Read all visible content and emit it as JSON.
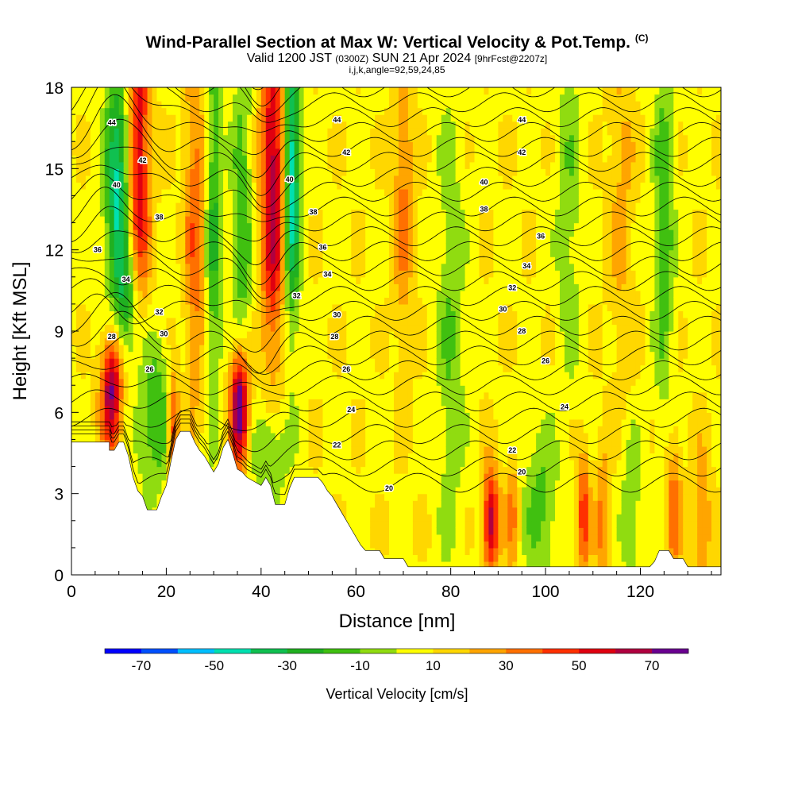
{
  "title": {
    "main": "Wind-Parallel Section at Max W: Vertical Velocity & Pot.Temp.",
    "copyright": "(C)",
    "valid_prefix": "Valid 1200 JST",
    "valid_utc": "(0300Z)",
    "valid_date": "SUN 21 Apr 2024",
    "forecast": "[9hrFcst@2207z]",
    "indices": "i,j,k,angle=92,59,24,85"
  },
  "chart_data": {
    "type": "heatmap",
    "xlabel": "Distance [nm]",
    "ylabel": "Height [Kft MSL]",
    "xlim": [
      0,
      137
    ],
    "ylim": [
      0,
      18
    ],
    "x_ticks": [
      "0",
      "20",
      "40",
      "60",
      "80",
      "100",
      "120"
    ],
    "y_ticks": [
      "0",
      "3",
      "6",
      "9",
      "12",
      "15",
      "18"
    ],
    "colorbar": {
      "label": "Vertical Velocity [cm/s]",
      "tick_labels": [
        "-70",
        "-50",
        "-30",
        "-10",
        "10",
        "30",
        "50",
        "70"
      ],
      "levels": [
        -80,
        -70,
        -60,
        -50,
        -40,
        -30,
        -20,
        -10,
        0,
        10,
        20,
        30,
        40,
        50,
        60,
        70,
        80
      ],
      "colors": [
        "#0000ff",
        "#0050ff",
        "#00bfff",
        "#00e0b0",
        "#10c050",
        "#20b020",
        "#40c010",
        "#90dc10",
        "#ffff00",
        "#ffd700",
        "#ffa500",
        "#ff7000",
        "#ff3000",
        "#e00010",
        "#b00040",
        "#6a0090"
      ]
    },
    "terrain": [
      [
        0,
        4.9
      ],
      [
        8,
        4.9
      ],
      [
        8,
        4.6
      ],
      [
        9,
        4.6
      ],
      [
        10,
        4.9
      ],
      [
        11,
        4.9
      ],
      [
        12,
        4.4
      ],
      [
        13,
        3.6
      ],
      [
        14,
        3.1
      ],
      [
        15,
        2.9
      ],
      [
        16,
        2.4
      ],
      [
        18,
        2.4
      ],
      [
        19,
        2.9
      ],
      [
        20,
        3.3
      ],
      [
        21,
        4.2
      ],
      [
        22,
        5.0
      ],
      [
        23,
        5.3
      ],
      [
        25,
        5.3
      ],
      [
        26,
        4.9
      ],
      [
        27,
        4.6
      ],
      [
        28,
        4.4
      ],
      [
        29,
        4.1
      ],
      [
        30,
        3.8
      ],
      [
        31,
        4.1
      ],
      [
        32,
        4.7
      ],
      [
        33,
        5.0
      ],
      [
        34,
        4.5
      ],
      [
        35,
        3.9
      ],
      [
        36,
        3.8
      ],
      [
        37,
        3.6
      ],
      [
        38,
        3.5
      ],
      [
        39,
        3.4
      ],
      [
        40,
        3.3
      ],
      [
        41,
        3.6
      ],
      [
        42,
        3.3
      ],
      [
        43,
        2.6
      ],
      [
        45,
        2.6
      ],
      [
        46,
        3.2
      ],
      [
        47,
        3.6
      ],
      [
        52,
        3.6
      ],
      [
        53,
        3.4
      ],
      [
        54,
        3.1
      ],
      [
        55,
        2.9
      ],
      [
        56,
        2.6
      ],
      [
        57,
        2.3
      ],
      [
        58,
        2.0
      ],
      [
        59,
        1.7
      ],
      [
        60,
        1.4
      ],
      [
        61,
        1.1
      ],
      [
        62,
        0.9
      ],
      [
        65,
        0.9
      ],
      [
        66,
        0.6
      ],
      [
        70,
        0.6
      ],
      [
        71,
        0.3
      ],
      [
        122,
        0.3
      ],
      [
        123,
        0.5
      ],
      [
        124,
        0.9
      ],
      [
        126,
        0.9
      ],
      [
        127,
        0.6
      ],
      [
        129,
        0.6
      ],
      [
        130,
        0.3
      ],
      [
        137,
        0.3
      ]
    ],
    "isentrope_labels": [
      {
        "text": "44",
        "x": 8.5,
        "y": 16.7
      },
      {
        "text": "44",
        "x": 56,
        "y": 16.8
      },
      {
        "text": "44",
        "x": 95,
        "y": 16.8
      },
      {
        "text": "42",
        "x": 15,
        "y": 15.3
      },
      {
        "text": "42",
        "x": 58,
        "y": 15.6
      },
      {
        "text": "42",
        "x": 95,
        "y": 15.6
      },
      {
        "text": "40",
        "x": 9.5,
        "y": 14.4
      },
      {
        "text": "40",
        "x": 46,
        "y": 14.6
      },
      {
        "text": "40",
        "x": 87,
        "y": 14.5
      },
      {
        "text": "38",
        "x": 18.5,
        "y": 13.2
      },
      {
        "text": "38",
        "x": 51,
        "y": 13.4
      },
      {
        "text": "38",
        "x": 87,
        "y": 13.5
      },
      {
        "text": "36",
        "x": 5.5,
        "y": 12.0
      },
      {
        "text": "36",
        "x": 53,
        "y": 12.1
      },
      {
        "text": "36",
        "x": 99,
        "y": 12.5
      },
      {
        "text": "34",
        "x": 11.5,
        "y": 10.9
      },
      {
        "text": "34",
        "x": 54,
        "y": 11.1
      },
      {
        "text": "34",
        "x": 96,
        "y": 11.4
      },
      {
        "text": "32",
        "x": 18.5,
        "y": 9.7
      },
      {
        "text": "32",
        "x": 47.5,
        "y": 10.3
      },
      {
        "text": "32",
        "x": 93,
        "y": 10.6
      },
      {
        "text": "30",
        "x": 19.5,
        "y": 8.9
      },
      {
        "text": "30",
        "x": 56,
        "y": 9.6
      },
      {
        "text": "30",
        "x": 91,
        "y": 9.8
      },
      {
        "text": "28",
        "x": 8.5,
        "y": 8.8
      },
      {
        "text": "28",
        "x": 55.5,
        "y": 8.8
      },
      {
        "text": "28",
        "x": 95,
        "y": 9.0
      },
      {
        "text": "26",
        "x": 16.5,
        "y": 7.6
      },
      {
        "text": "26",
        "x": 58,
        "y": 7.6
      },
      {
        "text": "26",
        "x": 100,
        "y": 7.9
      },
      {
        "text": "24",
        "x": 59,
        "y": 6.1
      },
      {
        "text": "24",
        "x": 104,
        "y": 6.2
      },
      {
        "text": "22",
        "x": 56,
        "y": 4.8
      },
      {
        "text": "22",
        "x": 93,
        "y": 4.6
      },
      {
        "text": "20",
        "x": 67,
        "y": 3.2
      },
      {
        "text": "20",
        "x": 95,
        "y": 3.8
      }
    ],
    "isentrope_levels": [
      20,
      22,
      24,
      26,
      28,
      30,
      32,
      34,
      36,
      38,
      40,
      42,
      44
    ]
  }
}
